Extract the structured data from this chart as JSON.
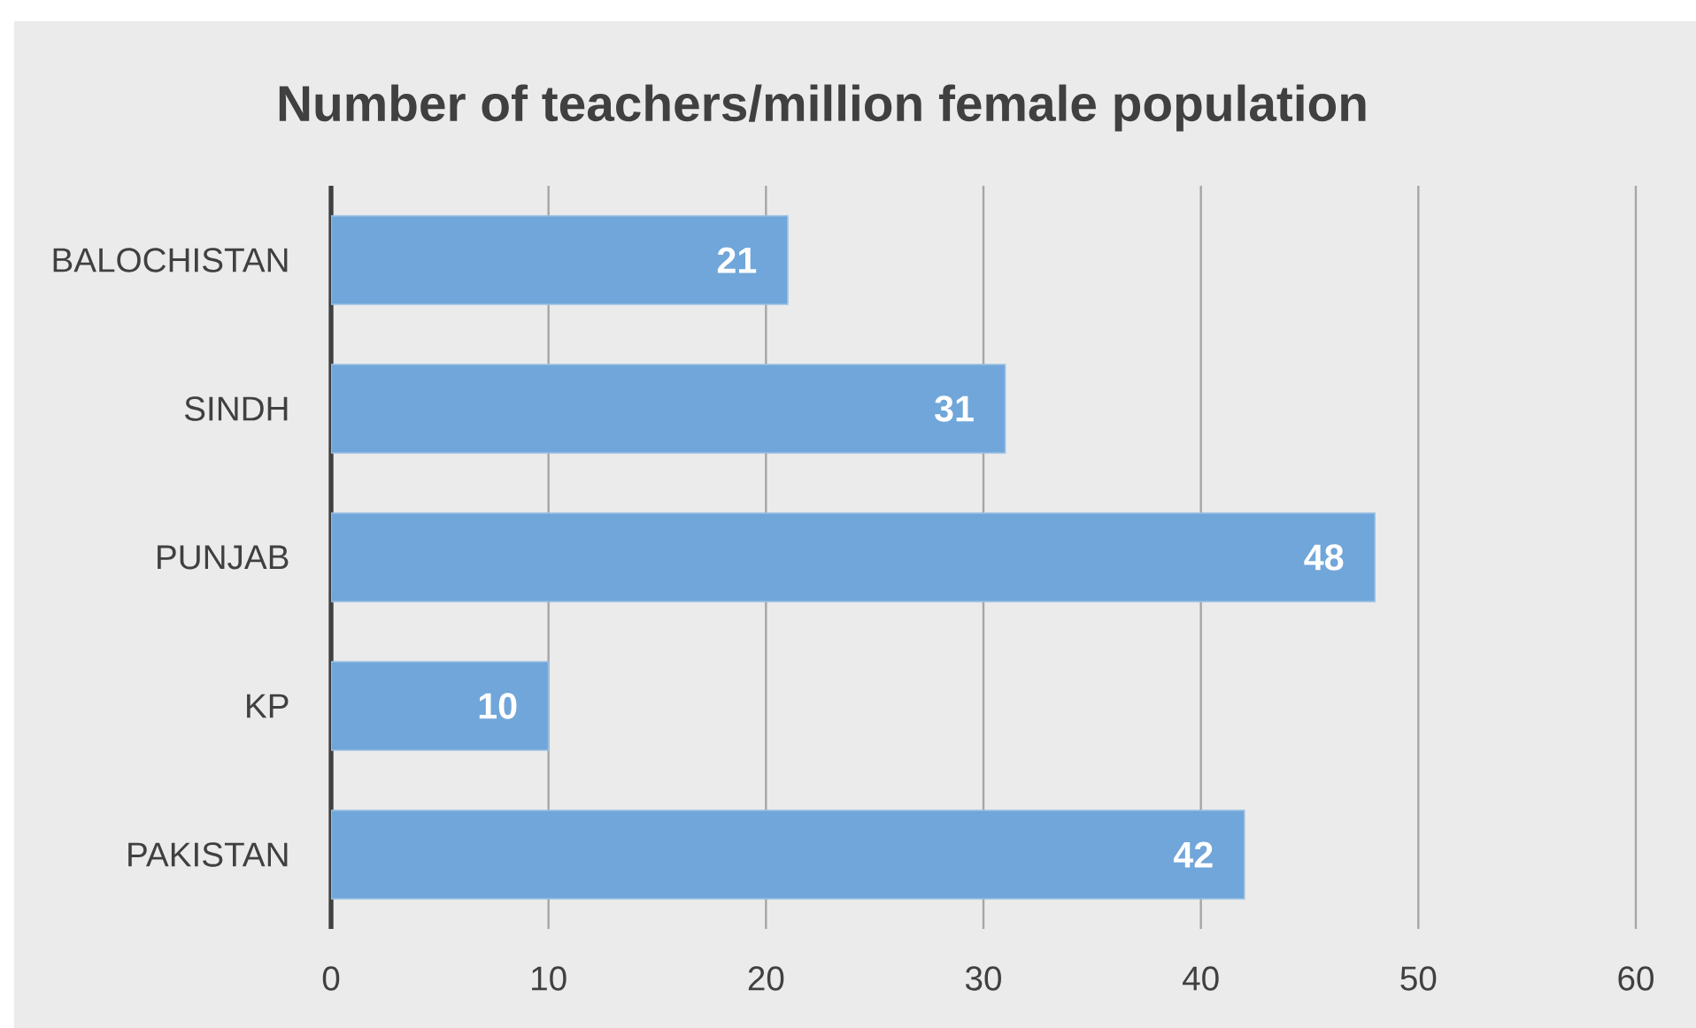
{
  "chart_data": {
    "type": "bar",
    "orientation": "horizontal",
    "title": "Number of teachers/million female population",
    "categories": [
      "BALOCHISTAN",
      "SINDH",
      "PUNJAB",
      "KP",
      "PAKISTAN"
    ],
    "values": [
      21,
      31,
      48,
      10,
      42
    ],
    "color": "#70a6d9",
    "xlim": [
      0,
      60
    ],
    "xticks": [
      0,
      10,
      20,
      30,
      40,
      50,
      60
    ],
    "grid": "x",
    "data_labels": true
  }
}
